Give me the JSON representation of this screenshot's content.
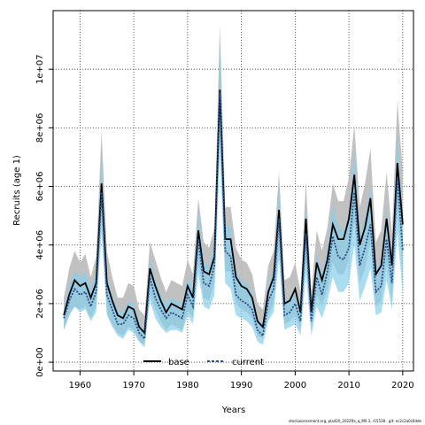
{
  "chart_data": {
    "type": "area",
    "xlabel": "Years",
    "ylabel": "Recruits (age 1)",
    "xlim": [
      1955,
      2022
    ],
    "ylim": [
      -300000,
      12000000
    ],
    "x_ticks": [
      1960,
      1970,
      1980,
      1990,
      2000,
      2010,
      2020
    ],
    "y_ticks": [
      {
        "value": 0,
        "label": "0e+00"
      },
      {
        "value": 2000000,
        "label": "2e+06"
      },
      {
        "value": 4000000,
        "label": "4e+06"
      },
      {
        "value": 6000000,
        "label": "6e+06"
      },
      {
        "value": 8000000,
        "label": "8e+06"
      },
      {
        "value": 10000000,
        "label": "1e+07"
      }
    ],
    "grid": true,
    "legend_position": "bottom-center",
    "x": [
      1957,
      1958,
      1959,
      1960,
      1961,
      1962,
      1963,
      1964,
      1965,
      1966,
      1967,
      1968,
      1969,
      1970,
      1971,
      1972,
      1973,
      1974,
      1975,
      1976,
      1977,
      1978,
      1979,
      1980,
      1981,
      1982,
      1983,
      1984,
      1985,
      1986,
      1987,
      1988,
      1989,
      1990,
      1991,
      1992,
      1993,
      1994,
      1995,
      1996,
      1997,
      1998,
      1999,
      2000,
      2001,
      2002,
      2003,
      2004,
      2005,
      2006,
      2007,
      2008,
      2009,
      2010,
      2011,
      2012,
      2013,
      2014,
      2015,
      2016,
      2017,
      2018,
      2019,
      2020
    ],
    "series": [
      {
        "name": "base",
        "color": "#000000",
        "band_color": "#bebebe",
        "values": [
          1600000,
          2300000,
          2800000,
          2600000,
          2700000,
          2200000,
          2700000,
          6100000,
          2700000,
          2100000,
          1600000,
          1500000,
          1900000,
          1800000,
          1200000,
          1000000,
          3200000,
          2600000,
          2100000,
          1700000,
          2000000,
          1900000,
          1800000,
          2600000,
          2200000,
          4500000,
          3100000,
          3000000,
          3600000,
          9300000,
          4200000,
          4200000,
          2900000,
          2600000,
          2500000,
          2200000,
          1400000,
          1200000,
          2400000,
          2900000,
          5200000,
          2000000,
          2100000,
          2500000,
          1700000,
          4900000,
          1700000,
          3400000,
          2800000,
          3500000,
          4700000,
          4200000,
          4200000,
          4900000,
          6400000,
          4000000,
          4600000,
          5600000,
          3000000,
          3300000,
          4900000,
          3300000,
          6800000,
          4700000
        ],
        "lower": [
          1100000,
          1600000,
          1900000,
          1800000,
          1900000,
          1500000,
          1900000,
          4800000,
          1700000,
          1300000,
          1000000,
          900000,
          1200000,
          1100000,
          700000,
          600000,
          2300000,
          1800000,
          1400000,
          1100000,
          1300000,
          1200000,
          1100000,
          1800000,
          1500000,
          3400000,
          2200000,
          2100000,
          2700000,
          7900000,
          3100000,
          3100000,
          2000000,
          1800000,
          1700000,
          1500000,
          900000,
          800000,
          1600000,
          2000000,
          3900000,
          1300000,
          1400000,
          1600000,
          1100000,
          3500000,
          1100000,
          2300000,
          1900000,
          2500000,
          3400000,
          3000000,
          3000000,
          3500000,
          4800000,
          2700000,
          3200000,
          4100000,
          1900000,
          2100000,
          3400000,
          2100000,
          5200000,
          3000000
        ],
        "upper": [
          2200000,
          3200000,
          3800000,
          3400000,
          3700000,
          2900000,
          3600000,
          7900000,
          3800000,
          2900000,
          2200000,
          2200000,
          2700000,
          2600000,
          1800000,
          1600000,
          4100000,
          3500000,
          2900000,
          2400000,
          2800000,
          2700000,
          2600000,
          3500000,
          3000000,
          5600000,
          4100000,
          3900000,
          4600000,
          11500000,
          5300000,
          5300000,
          3900000,
          3500000,
          3400000,
          3000000,
          2000000,
          1800000,
          3300000,
          3800000,
          6500000,
          2800000,
          2900000,
          3400000,
          2400000,
          6200000,
          2400000,
          4500000,
          3800000,
          4600000,
          6100000,
          5500000,
          5500000,
          6300000,
          8100000,
          5300000,
          6100000,
          7300000,
          4100000,
          4500000,
          6500000,
          4400000,
          8900000,
          6500000
        ]
      },
      {
        "name": "current",
        "color": "#2a4f8a",
        "band_color": "#87ceeb",
        "values": [
          1500000,
          2100000,
          2500000,
          2300000,
          2400000,
          1900000,
          2400000,
          5800000,
          2300000,
          1800000,
          1300000,
          1300000,
          1600000,
          1500000,
          1000000,
          800000,
          2900000,
          2200000,
          1800000,
          1500000,
          1700000,
          1600000,
          1500000,
          2300000,
          1900000,
          4200000,
          2700000,
          2600000,
          3300000,
          9200000,
          3800000,
          3600000,
          2300000,
          2100000,
          2000000,
          1800000,
          1100000,
          900000,
          2100000,
          2500000,
          4900000,
          1600000,
          1700000,
          2000000,
          1400000,
          4400000,
          1400000,
          2900000,
          2300000,
          3100000,
          4300000,
          3600000,
          3500000,
          3900000,
          5800000,
          3300000,
          3900000,
          4700000,
          2400000,
          2600000,
          4200000,
          2700000,
          6300000,
          3800000
        ],
        "lower": [
          1100000,
          1600000,
          1900000,
          1700000,
          1800000,
          1400000,
          1700000,
          4400000,
          1600000,
          1200000,
          900000,
          800000,
          1100000,
          1000000,
          700000,
          500000,
          2100000,
          1500000,
          1200000,
          1000000,
          1100000,
          1100000,
          1000000,
          1600000,
          1300000,
          3000000,
          1900000,
          1800000,
          2300000,
          7000000,
          2700000,
          2500000,
          1600000,
          1500000,
          1400000,
          1200000,
          700000,
          600000,
          1400000,
          1700000,
          3500000,
          1100000,
          1200000,
          1300000,
          900000,
          3000000,
          900000,
          1900000,
          1500000,
          2100000,
          2900000,
          2400000,
          2400000,
          2700000,
          4000000,
          2100000,
          2600000,
          3200000,
          1600000,
          1700000,
          2800000,
          1800000,
          4400000,
          2300000
        ],
        "upper": [
          1800000,
          2700000,
          3100000,
          2900000,
          3100000,
          2500000,
          3100000,
          7000000,
          2900000,
          2300000,
          1800000,
          1700000,
          2100000,
          2000000,
          1400000,
          1100000,
          3600000,
          2800000,
          2300000,
          2000000,
          2200000,
          2100000,
          2000000,
          2900000,
          2500000,
          5200000,
          3400000,
          3300000,
          4100000,
          10800000,
          4700000,
          4600000,
          3100000,
          2800000,
          2700000,
          2400000,
          1500000,
          1300000,
          2700000,
          3200000,
          6100000,
          2100000,
          2200000,
          2600000,
          1800000,
          5500000,
          1800000,
          3700000,
          3000000,
          3900000,
          5400000,
          4600000,
          4500000,
          5100000,
          7200000,
          4300000,
          5000000,
          6000000,
          3200000,
          3500000,
          5300000,
          3500000,
          7800000,
          5000000
        ]
      }
    ]
  },
  "footer": "stockassessment.org,  pla420_2022ftx_q_M0.3,  r15538 ,  git:  ec2c2a0c6dde"
}
